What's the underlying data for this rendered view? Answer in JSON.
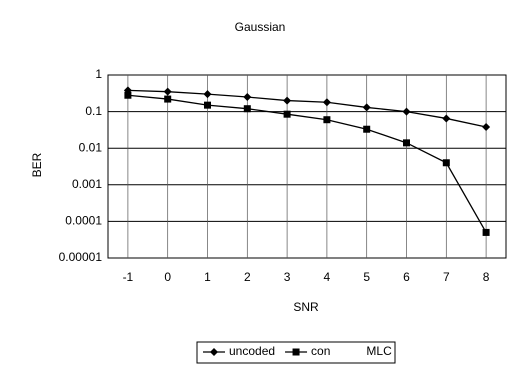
{
  "chart_data": {
    "type": "line",
    "title": "Gaussian",
    "x_label": "SNR",
    "y_label": "BER",
    "x": [
      -1,
      0,
      1,
      2,
      3,
      4,
      5,
      6,
      7,
      8
    ],
    "xlim": [
      -1.5,
      8.5
    ],
    "xticks": [
      -1,
      0,
      1,
      2,
      3,
      4,
      5,
      6,
      7,
      8
    ],
    "ylim": [
      1e-05,
      1
    ],
    "yticks": [
      1,
      0.1,
      0.01,
      0.001,
      0.0001,
      1e-05
    ],
    "yscale": "log",
    "grid": true,
    "legend": "bottom",
    "series": [
      {
        "name": "uncoded",
        "color": "#000000",
        "marker": "diamond",
        "values": [
          0.38,
          0.35,
          0.3,
          0.25,
          0.2,
          0.18,
          0.13,
          0.1,
          0.065,
          0.038
        ]
      },
      {
        "name": "con",
        "color": "#000000",
        "marker": "square",
        "values": [
          0.28,
          0.22,
          0.15,
          0.12,
          0.085,
          0.06,
          0.033,
          0.014,
          0.004,
          5e-05
        ]
      },
      {
        "name": "MLC",
        "color": "#000000",
        "values": [
          null,
          null,
          null,
          null,
          null,
          null,
          null,
          null,
          null,
          null
        ]
      }
    ]
  }
}
